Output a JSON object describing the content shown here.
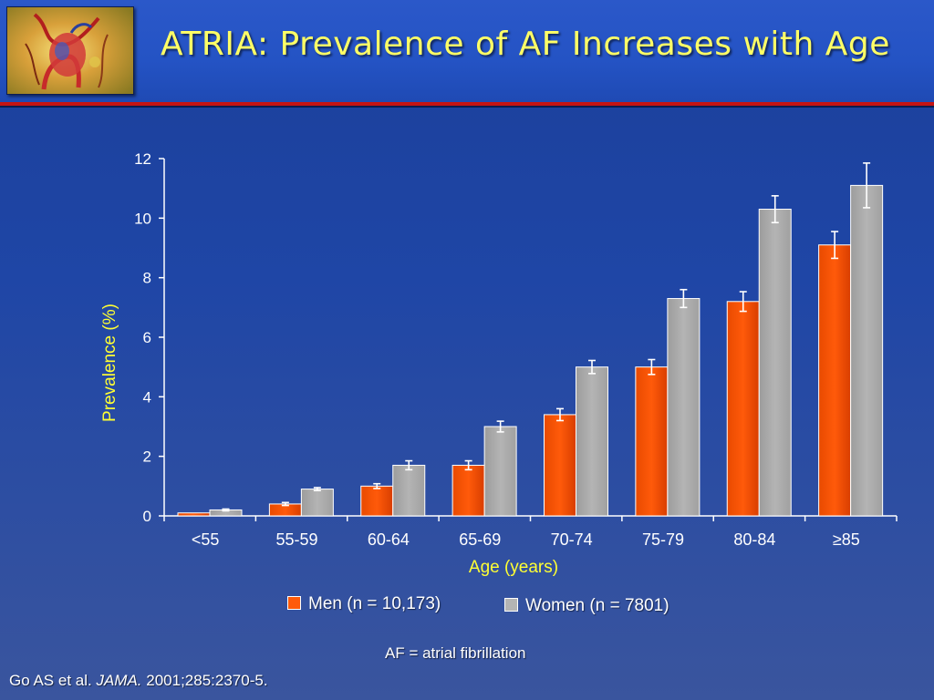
{
  "header": {
    "title": "ATRIA: Prevalence of AF Increases with Age",
    "title_color": "#ffff66",
    "logo_icon": "heart-artwork-icon"
  },
  "chart_data": {
    "type": "bar",
    "categories": [
      "<55",
      "55-59",
      "60-64",
      "65-69",
      "70-74",
      "75-79",
      "80-84",
      "≥85"
    ],
    "series": [
      {
        "name": "Men (n = 10,173)",
        "color": "#ff5a0a",
        "values": [
          0.1,
          0.4,
          1.0,
          1.7,
          3.4,
          5.0,
          7.2,
          9.1
        ],
        "error": [
          0.0,
          0.05,
          0.08,
          0.15,
          0.2,
          0.25,
          0.33,
          0.45
        ]
      },
      {
        "name": "Women (n = 7801)",
        "color": "#b4b4b4",
        "values": [
          0.2,
          0.9,
          1.7,
          3.0,
          5.0,
          7.3,
          10.3,
          11.1
        ],
        "error": [
          0.03,
          0.05,
          0.15,
          0.18,
          0.22,
          0.3,
          0.45,
          0.75
        ]
      }
    ],
    "xlabel": "Age (years)",
    "ylabel": "Prevalence (%)",
    "label_color": "#ffff33",
    "ylim": [
      0,
      12
    ],
    "yticks": [
      0,
      2,
      4,
      6,
      8,
      10,
      12
    ],
    "grid": false,
    "legend_position": "bottom"
  },
  "footnote": "AF = atrial fibrillation",
  "citation": {
    "authors": "Go AS et al.",
    "journal": "JAMA.",
    "details": "2001;285:2370-5."
  }
}
